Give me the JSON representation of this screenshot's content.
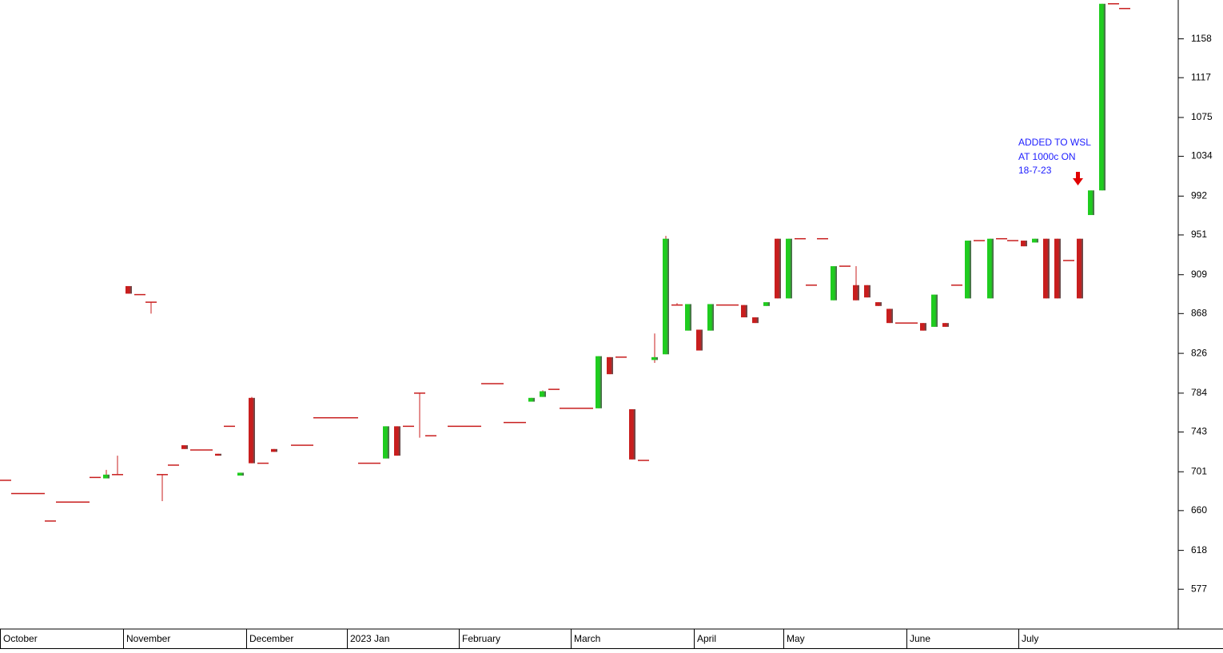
{
  "chart_data": {
    "type": "candlestick",
    "annotation": {
      "lines": [
        "ADDED TO WSL",
        "AT 1000c ON",
        "18-7-23"
      ],
      "color": "#2020ff"
    },
    "up_color": "#1fcc1f",
    "down_color": "#c81e1e",
    "ylim": [
      535,
      1199
    ],
    "yticks": [
      577,
      618,
      660,
      701,
      743,
      784,
      826,
      868,
      909,
      951,
      992,
      1034,
      1075,
      1117,
      1158
    ],
    "categories": [
      "October",
      null,
      null,
      null,
      null,
      null,
      null,
      null,
      null,
      null,
      null,
      "November",
      null,
      null,
      null,
      null,
      null,
      null,
      null,
      null,
      null,
      null,
      "December",
      null,
      null,
      null,
      null,
      null,
      null,
      null,
      null,
      "2023 Jan",
      null,
      null,
      null,
      null,
      null,
      null,
      null,
      null,
      null,
      "February",
      null,
      null,
      null,
      null,
      null,
      null,
      null,
      null,
      null,
      "March",
      null,
      null,
      null,
      null,
      null,
      null,
      null,
      null,
      null,
      null,
      "April",
      null,
      null,
      null,
      null,
      null,
      null,
      null,
      "May",
      null,
      null,
      null,
      null,
      null,
      null,
      null,
      null,
      null,
      null,
      "June",
      null,
      null,
      null,
      null,
      null,
      null,
      null,
      null,
      null,
      "July",
      null,
      null,
      null,
      null,
      null,
      null,
      null,
      null,
      null,
      null,
      null,
      null,
      null
    ],
    "open": [
      692,
      678,
      678,
      678,
      649,
      669,
      669,
      669,
      695,
      694,
      698,
      897,
      888,
      880,
      698,
      708,
      729,
      724,
      724,
      720,
      749,
      697,
      779,
      710,
      725,
      null,
      729,
      729,
      758,
      758,
      758,
      758,
      710,
      710,
      715,
      749,
      749,
      784,
      739,
      null,
      749,
      749,
      749,
      794,
      794,
      753,
      753,
      775,
      780,
      788,
      768,
      768,
      768,
      768,
      822,
      822,
      767,
      713,
      819,
      825,
      877,
      850,
      851,
      850,
      877,
      877,
      877,
      864,
      876,
      947,
      884,
      947,
      898,
      947,
      882,
      918,
      898,
      898,
      880,
      873,
      858,
      858,
      858,
      854,
      858,
      898,
      884,
      945,
      884,
      947,
      945,
      945,
      943,
      947,
      947,
      924,
      947,
      972,
      998,
      1195,
      1190,
      null,
      null,
      null,
      null
    ],
    "high": [
      692,
      678,
      678,
      678,
      649,
      669,
      669,
      669,
      695,
      703,
      718,
      897,
      888,
      880,
      698,
      708,
      729,
      724,
      724,
      720,
      749,
      700,
      780,
      710,
      725,
      null,
      729,
      729,
      758,
      758,
      758,
      758,
      710,
      710,
      749,
      749,
      749,
      784,
      739,
      null,
      749,
      749,
      749,
      794,
      794,
      753,
      753,
      779,
      787,
      788,
      768,
      768,
      768,
      823,
      822,
      822,
      767,
      713,
      847,
      950,
      879,
      878,
      851,
      878,
      877,
      877,
      877,
      864,
      880,
      947,
      947,
      947,
      898,
      947,
      918,
      918,
      918,
      898,
      880,
      873,
      858,
      858,
      858,
      888,
      858,
      898,
      945,
      945,
      947,
      947,
      945,
      945,
      947,
      947,
      947,
      924,
      947,
      998,
      1195,
      1195,
      1190,
      null,
      null,
      null,
      null
    ],
    "low": [
      692,
      678,
      678,
      678,
      649,
      669,
      669,
      669,
      695,
      694,
      698,
      889,
      888,
      868,
      670,
      708,
      725,
      724,
      724,
      718,
      749,
      697,
      710,
      710,
      722,
      null,
      729,
      729,
      758,
      758,
      758,
      758,
      710,
      710,
      715,
      718,
      749,
      737,
      739,
      null,
      749,
      749,
      749,
      794,
      794,
      753,
      753,
      775,
      780,
      788,
      768,
      768,
      768,
      768,
      804,
      822,
      714,
      713,
      816,
      825,
      877,
      850,
      829,
      850,
      877,
      877,
      864,
      858,
      876,
      884,
      884,
      947,
      898,
      947,
      882,
      918,
      882,
      885,
      876,
      858,
      858,
      858,
      850,
      854,
      854,
      898,
      884,
      945,
      884,
      947,
      945,
      939,
      943,
      884,
      884,
      924,
      884,
      972,
      998,
      1195,
      1190,
      null,
      null,
      null,
      null
    ],
    "close": [
      692,
      678,
      678,
      678,
      649,
      669,
      669,
      669,
      695,
      698,
      698,
      889,
      888,
      880,
      698,
      708,
      725,
      724,
      724,
      718,
      749,
      700,
      710,
      710,
      722,
      null,
      729,
      729,
      758,
      758,
      758,
      758,
      710,
      710,
      749,
      718,
      749,
      784,
      739,
      null,
      749,
      749,
      749,
      794,
      794,
      753,
      753,
      779,
      786,
      788,
      768,
      768,
      768,
      823,
      804,
      822,
      714,
      713,
      822,
      947,
      877,
      878,
      829,
      878,
      877,
      877,
      864,
      858,
      880,
      884,
      947,
      947,
      898,
      947,
      918,
      918,
      882,
      885,
      876,
      858,
      858,
      858,
      850,
      888,
      854,
      898,
      945,
      945,
      947,
      947,
      945,
      939,
      947,
      884,
      884,
      924,
      884,
      998,
      1195,
      1195,
      1190,
      null,
      null,
      null,
      null
    ]
  }
}
